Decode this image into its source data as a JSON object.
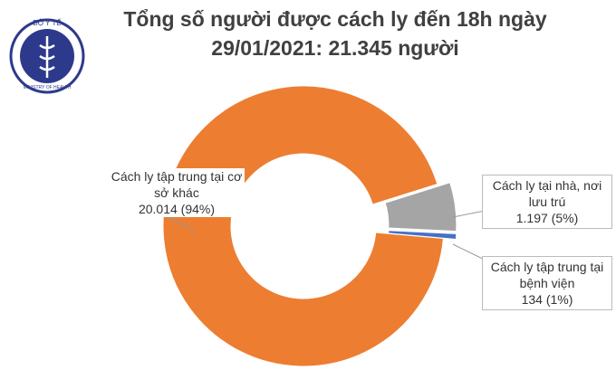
{
  "logo_text": {
    "top": "BỘ Y TẾ",
    "bottom": "MINISTRY OF HEALTH"
  },
  "chart_data": {
    "type": "donut",
    "title": "Tổng số người được cách ly đến 18h ngày",
    "subtitle": "29/01/2021: 21.345 người",
    "categories": [
      "Cách ly tập trung tại cơ sở khác",
      "Cách ly tại nhà, nơi lưu trú",
      "Cách ly tập trung tại bệnh viện"
    ],
    "values": [
      20014,
      1197,
      134
    ],
    "value_labels": [
      "20.014 (94%)",
      "1.197 (5%)",
      "134 (1%)"
    ],
    "colors": [
      "#ed7d31",
      "#a5a5a5",
      "#4472c4"
    ]
  }
}
